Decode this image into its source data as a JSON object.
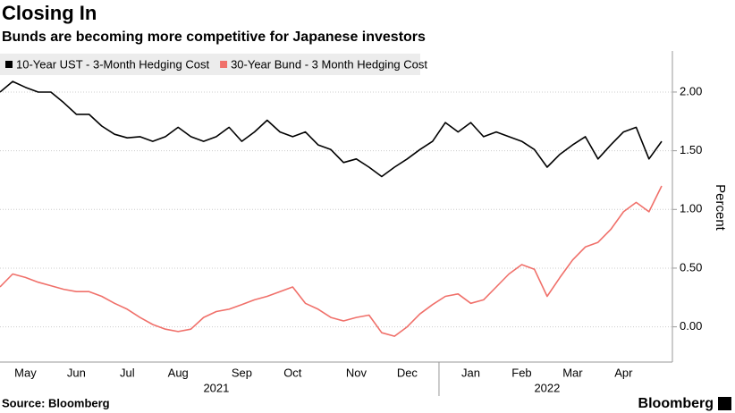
{
  "chart_data": {
    "type": "line",
    "title": "Closing In",
    "subtitle": "Bunds are becoming more competitive for Japanese investors",
    "y_label": "Percent",
    "source": "Source: Bloomberg",
    "brand": "Bloomberg",
    "categories": [
      null,
      null,
      "May",
      null,
      null,
      null,
      "Jun",
      null,
      null,
      null,
      "Jul",
      null,
      null,
      null,
      "Aug",
      null,
      null,
      null,
      null,
      "Sep",
      null,
      null,
      null,
      "Oct",
      null,
      null,
      null,
      null,
      "Nov",
      null,
      null,
      null,
      "Dec",
      null,
      null,
      null,
      null,
      "Jan",
      null,
      null,
      null,
      "Feb",
      null,
      null,
      null,
      "Mar",
      null,
      null,
      null,
      "Apr",
      null,
      null,
      null
    ],
    "x_groups": [
      {
        "label": "2021",
        "first": 0
      },
      {
        "label": "2022",
        "first": 35
      }
    ],
    "series": [
      {
        "name": "10-Year UST - 3-Month Hedging Cost",
        "color": "#000000",
        "values": [
          2.0,
          2.09,
          2.04,
          2.0,
          2.0,
          1.91,
          1.81,
          1.81,
          1.71,
          1.64,
          1.61,
          1.62,
          1.58,
          1.62,
          1.7,
          1.62,
          1.58,
          1.62,
          1.7,
          1.58,
          1.66,
          1.76,
          1.66,
          1.62,
          1.66,
          1.55,
          1.51,
          1.4,
          1.43,
          1.36,
          1.28,
          1.36,
          1.43,
          1.51,
          1.58,
          1.74,
          1.66,
          1.74,
          1.62,
          1.66,
          1.62,
          1.58,
          1.51,
          1.36,
          1.47,
          1.55,
          1.62,
          1.43,
          1.55,
          1.66,
          1.7,
          1.43,
          1.58
        ]
      },
      {
        "name": "30-Year Bund - 3 Month Hedging Cost",
        "color": "#f0706a",
        "values": [
          0.34,
          0.45,
          0.42,
          0.38,
          0.35,
          0.32,
          0.3,
          0.3,
          0.26,
          0.2,
          0.15,
          0.08,
          0.02,
          -0.02,
          -0.04,
          -0.02,
          0.08,
          0.13,
          0.15,
          0.19,
          0.23,
          0.26,
          0.3,
          0.34,
          0.2,
          0.15,
          0.08,
          0.05,
          0.08,
          0.1,
          -0.05,
          -0.08,
          0.0,
          0.11,
          0.19,
          0.26,
          0.28,
          0.2,
          0.23,
          0.34,
          0.45,
          0.53,
          0.49,
          0.26,
          0.42,
          0.57,
          0.68,
          0.72,
          0.83,
          0.98,
          1.06,
          0.98,
          1.2
        ]
      }
    ],
    "ylim": [
      -0.3,
      2.35
    ],
    "yticks": [
      {
        "value": 0,
        "label": "0.00"
      },
      {
        "value": 0.5,
        "label": "0.50"
      },
      {
        "value": 1,
        "label": "1.00"
      },
      {
        "value": 1.5,
        "label": "1.50"
      },
      {
        "value": 2,
        "label": "2.00"
      }
    ],
    "grid": true
  }
}
